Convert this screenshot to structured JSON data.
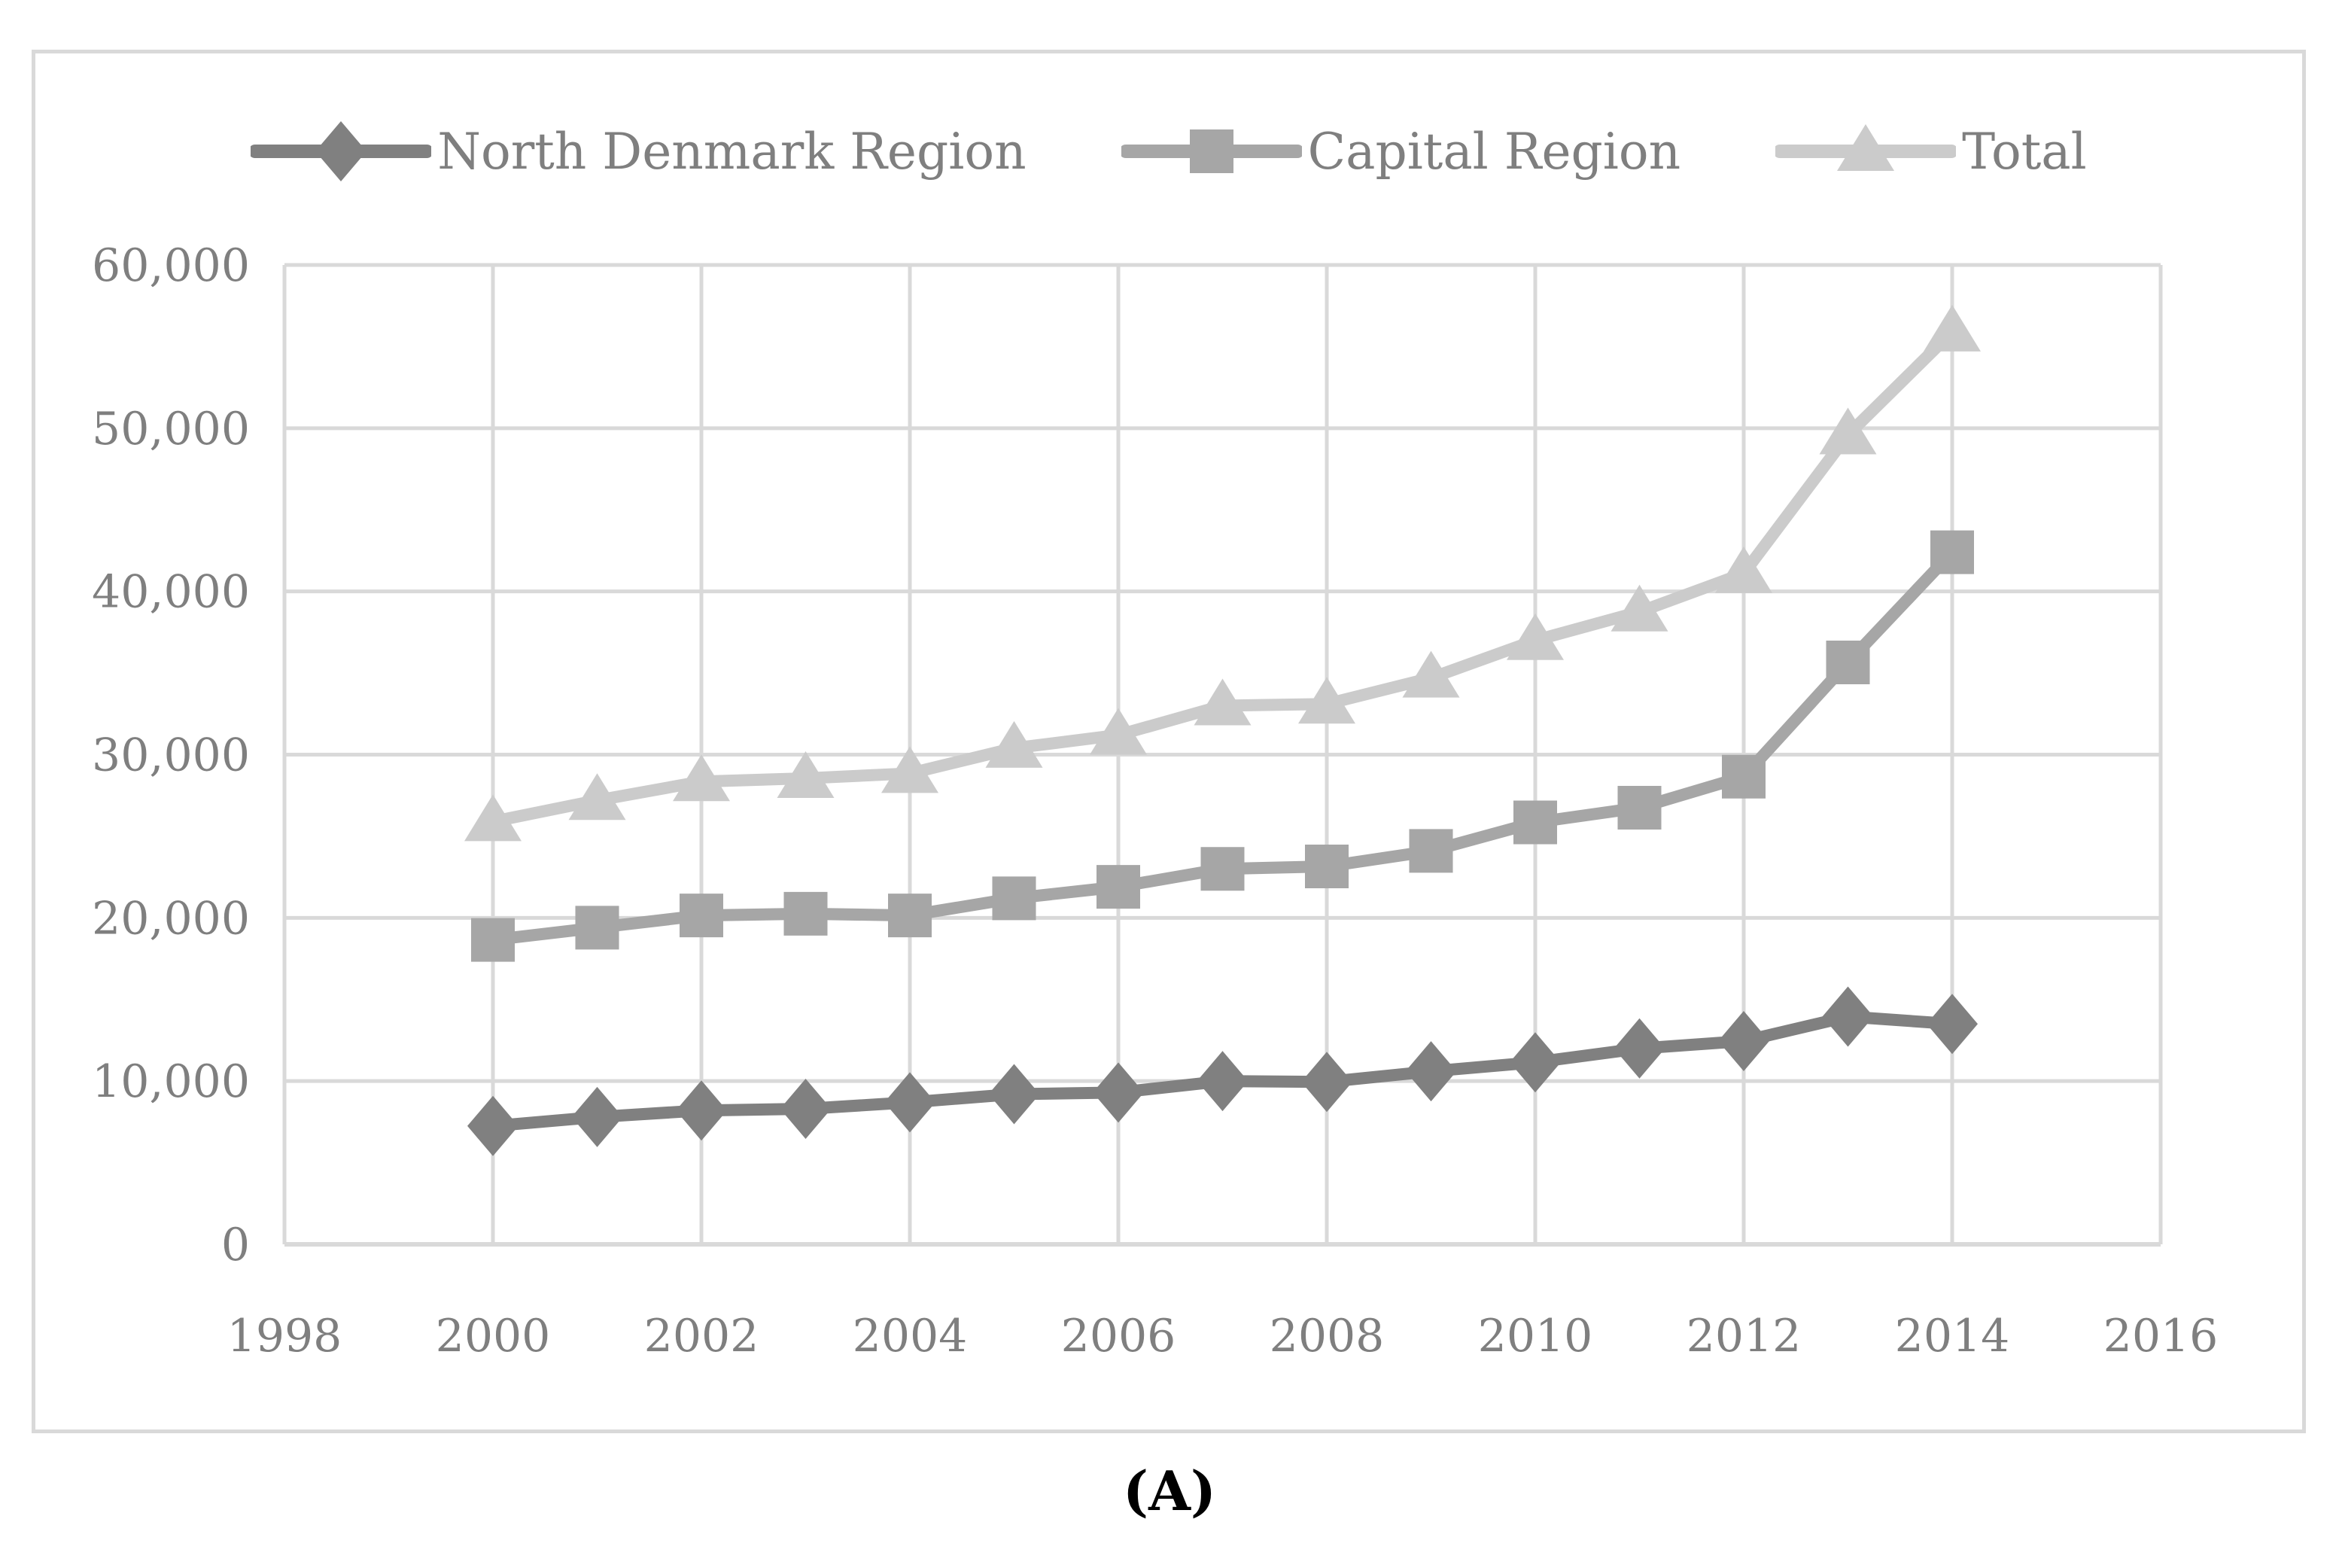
{
  "figure": {
    "caption": "(A)"
  },
  "colors": {
    "gridline": "#d9d9d9",
    "axis_line": "#d9d9d9",
    "figure_border": "#d9d9d9",
    "axis_text": "#7f7f7f",
    "legend_text": "#7f7f7f",
    "caption_text": "#000000"
  },
  "chart_data": {
    "type": "line",
    "title": "",
    "xlabel": "",
    "ylabel": "",
    "grid": true,
    "legend_position": "top",
    "xlim": [
      1998,
      2016
    ],
    "ylim": [
      0,
      60000
    ],
    "x_tick_values": [
      1998,
      2000,
      2002,
      2004,
      2006,
      2008,
      2010,
      2012,
      2014,
      2016
    ],
    "x_tick_labels": [
      "1998",
      "2000",
      "2002",
      "2004",
      "2006",
      "2008",
      "2010",
      "2012",
      "2014",
      "2016"
    ],
    "y_tick_values": [
      0,
      10000,
      20000,
      30000,
      40000,
      50000,
      60000
    ],
    "y_tick_labels": [
      "0",
      "10,000",
      "20,000",
      "30,000",
      "40,000",
      "50,000",
      "60,000"
    ],
    "x": [
      2000,
      2001,
      2002,
      2003,
      2004,
      2005,
      2006,
      2007,
      2008,
      2009,
      2010,
      2011,
      2012,
      2013,
      2014
    ],
    "series": [
      {
        "name": "North Denmark Region",
        "marker": "diamond",
        "color": "#808080",
        "values": [
          7250,
          7800,
          8200,
          8300,
          8700,
          9200,
          9300,
          10000,
          9950,
          10600,
          11150,
          12000,
          12450,
          13950,
          13500
        ]
      },
      {
        "name": "Capital Region",
        "marker": "square",
        "color": "#a6a6a6",
        "values": [
          18650,
          19400,
          20150,
          20250,
          20150,
          21200,
          21900,
          23000,
          23150,
          24100,
          25850,
          26750,
          28650,
          35650,
          42400
        ]
      },
      {
        "name": "Total",
        "marker": "triangle",
        "color": "#cbcbcb",
        "values": [
          25900,
          27200,
          28350,
          28550,
          28850,
          30400,
          31200,
          33000,
          33100,
          34700,
          37000,
          38750,
          41100,
          49600,
          55900
        ]
      }
    ]
  }
}
